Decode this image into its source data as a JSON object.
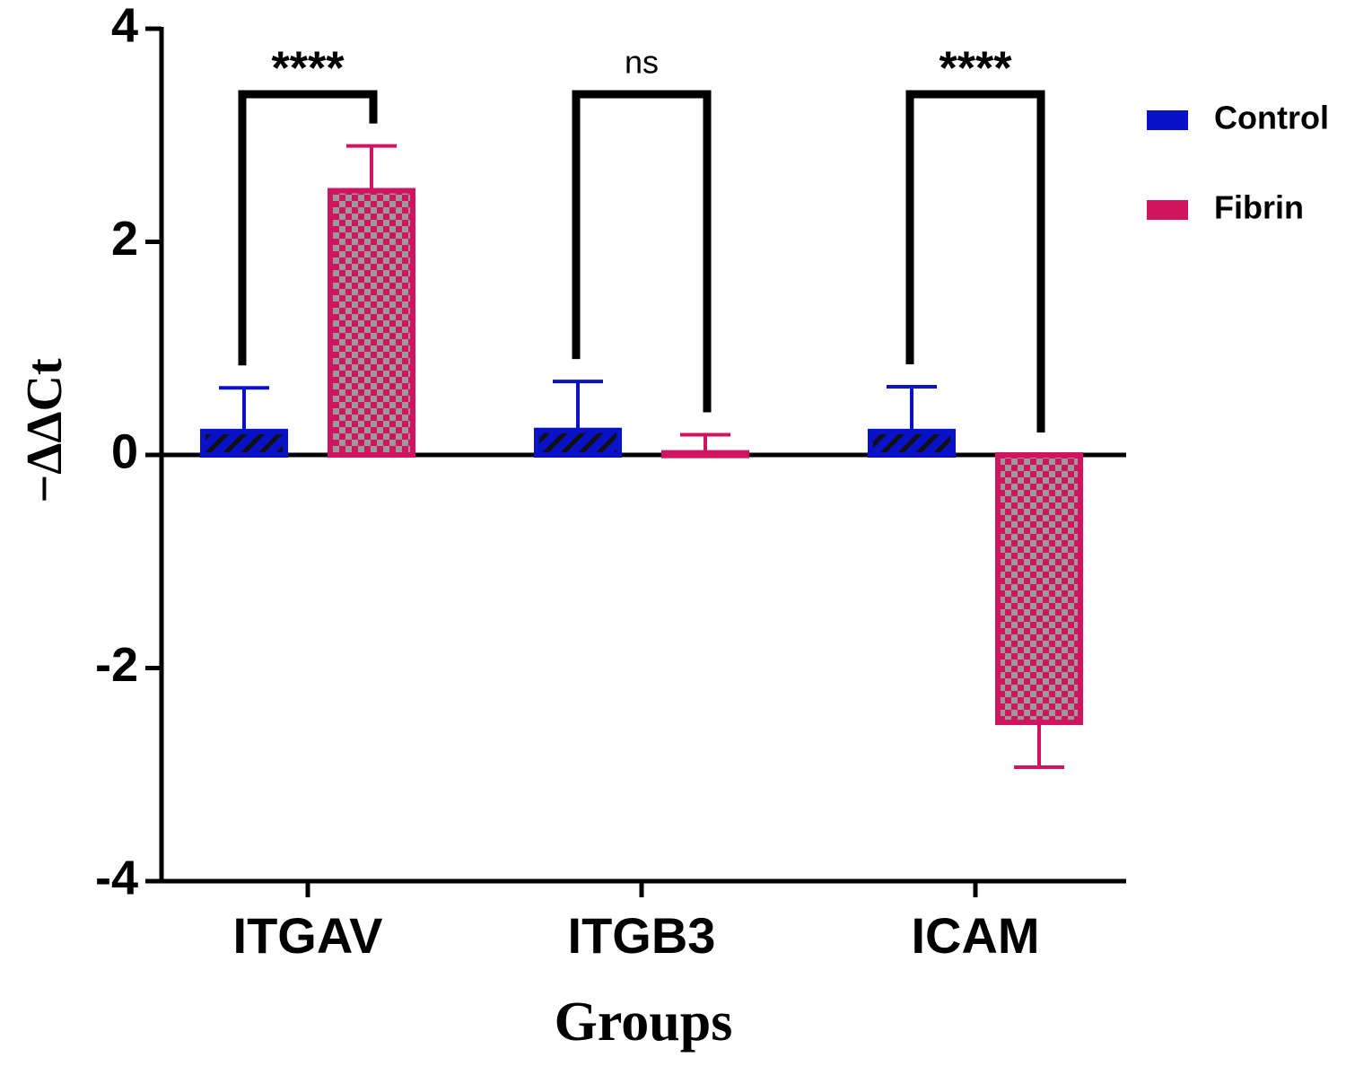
{
  "chart_data": {
    "type": "bar",
    "x_label": "Groups",
    "y_label": "−ΔΔCt",
    "categories": [
      "ITGAV",
      "ITGB3",
      "ICAM"
    ],
    "series": [
      {
        "name": "Control",
        "color": "#0a12c8",
        "values": [
          0.22,
          0.23,
          0.22
        ],
        "errors": [
          0.41,
          0.46,
          0.42
        ]
      },
      {
        "name": "Fibrin",
        "color": "#d0145f",
        "values": [
          2.48,
          0.02,
          -2.51
        ],
        "errors": [
          0.42,
          0.17,
          0.42
        ]
      }
    ],
    "significance": [
      "****",
      "ns",
      "****"
    ],
    "ylim": [
      -4,
      4
    ],
    "yticks": [
      -4,
      -2,
      0,
      2,
      4
    ],
    "legend": "top-right"
  }
}
